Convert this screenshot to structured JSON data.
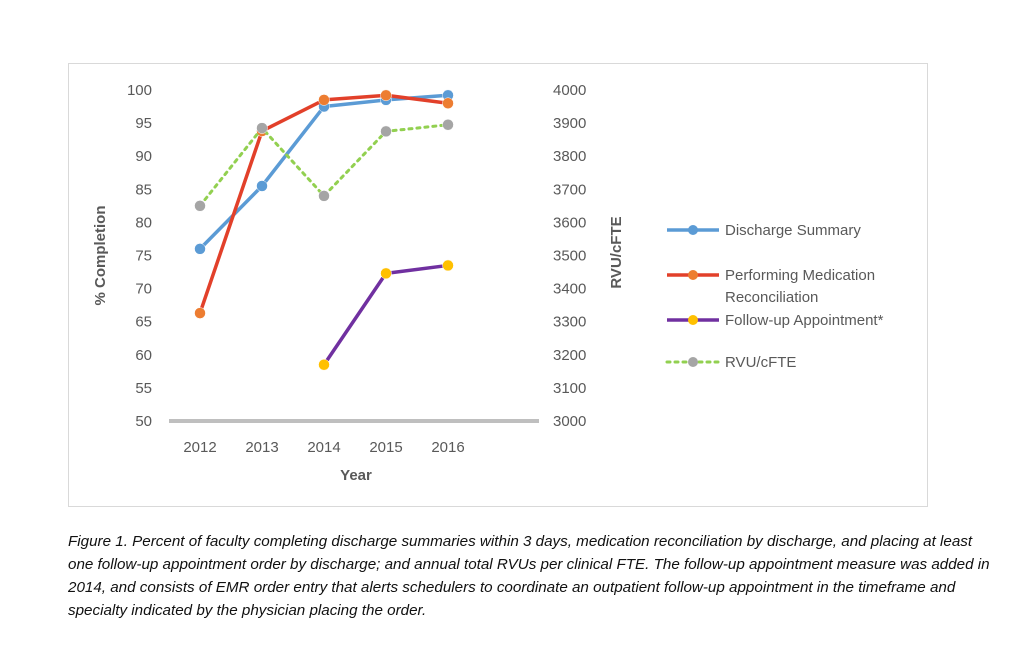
{
  "chart_data": {
    "type": "line",
    "x": [
      "2012",
      "2013",
      "2014",
      "2015",
      "2016"
    ],
    "xlabel": "Year",
    "ylabel": "% Completion",
    "ylabel_right": "RVU/cFTE",
    "ylim": [
      50,
      100
    ],
    "ylim_right": [
      3000,
      4000
    ],
    "yticks": [
      "50",
      "55",
      "60",
      "65",
      "70",
      "75",
      "80",
      "85",
      "90",
      "95",
      "100"
    ],
    "yticks_right": [
      "3000",
      "3100",
      "3200",
      "3300",
      "3400",
      "3500",
      "3600",
      "3700",
      "3800",
      "3900",
      "4000"
    ],
    "legend_position": "right",
    "series": [
      {
        "name": "Discharge Summary",
        "axis": "left",
        "style": "solid",
        "color": "#5b9bd5",
        "marker_color": "#5b9bd5",
        "values": [
          76,
          85.5,
          97.5,
          98.5,
          99.2
        ]
      },
      {
        "name": "Performing Medication Reconciliation",
        "axis": "left",
        "style": "solid",
        "color": "#e2402a",
        "marker_color": "#ed7d31",
        "legend_lines": [
          "Performing Medication",
          "Reconciliation"
        ],
        "values": [
          66.3,
          93.8,
          98.5,
          99.2,
          98
        ]
      },
      {
        "name": "Follow-up Appointment*",
        "axis": "left",
        "style": "solid",
        "color": "#7030a0",
        "marker_color": "#ffc000",
        "values": [
          null,
          null,
          58.5,
          72.3,
          73.5
        ]
      },
      {
        "name": "RVU/cFTE",
        "axis": "right",
        "style": "dotted",
        "color": "#92d050",
        "marker_color": "#a5a5a5",
        "values": [
          3650,
          3885,
          3680,
          3875,
          3895
        ]
      }
    ]
  },
  "caption": "Figure 1. Percent of faculty completing discharge summaries within 3 days, medication reconciliation by discharge, and placing at least one follow-up appointment order by discharge; and annual total RVUs per clinical FTE. The follow-up appointment measure was added in 2014, and consists of EMR order entry that alerts schedulers to coordinate an outpatient follow-up appointment in the timeframe and specialty indicated by the physician placing the order."
}
